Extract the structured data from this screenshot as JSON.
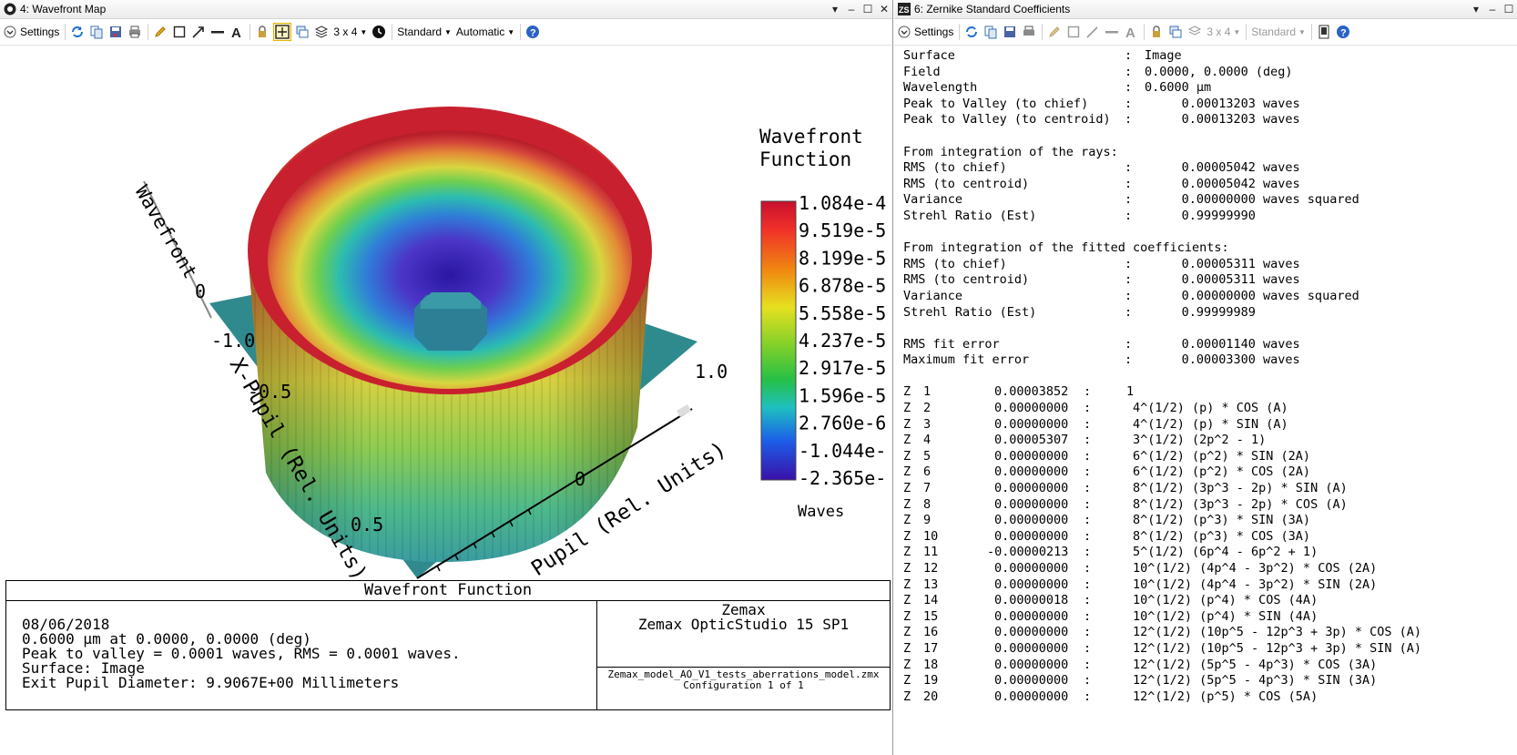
{
  "left_window": {
    "title": "4: Wavefront Map",
    "toolbar": {
      "settings": "Settings",
      "layout": "3 x 4",
      "standard": "Standard",
      "automatic": "Automatic"
    },
    "plot": {
      "legend_title_1": "Wavefront",
      "legend_title_2": "Function",
      "legend_ticks": [
        "1.084e-4",
        "9.519e-5",
        "8.199e-5",
        "6.878e-5",
        "5.558e-5",
        "4.237e-5",
        "2.917e-5",
        "1.596e-5",
        "2.760e-6",
        "-1.044e-",
        "-2.365e-"
      ],
      "units": "Waves",
      "z_axis_label": "Wavefront",
      "z_tick": "0",
      "x_axis_label": "X-Pupil (Rel. Units)",
      "y_axis_label": "Pupil (Rel. Units)",
      "x_ticks": [
        "-1.0",
        "-0.5",
        "0.5"
      ],
      "y_ticks": [
        "0",
        "1.0"
      ]
    },
    "info": {
      "title": "Wavefront Function",
      "lines": [
        "08/06/2018",
        "0.6000 µm at 0.0000, 0.0000 (deg)",
        "Peak to valley = 0.0001 waves, RMS = 0.0001 waves.",
        "Surface: Image",
        "Exit Pupil Diameter: 9.9067E+00 Millimeters"
      ],
      "company": "Zemax",
      "product": "Zemax OpticStudio 15 SP1",
      "file": "Zemax_model_AO_V1_tests_aberrations_model.zmx",
      "config": "Configuration 1 of 1"
    }
  },
  "right_window": {
    "title": "6: Zernike Standard Coefficients",
    "toolbar": {
      "settings": "Settings",
      "layout": "3 x 4",
      "standard": "Standard"
    },
    "summary": [
      {
        "label": "Surface",
        "value": "Image"
      },
      {
        "label": "Field",
        "value": "0.0000, 0.0000 (deg)"
      },
      {
        "label": "Wavelength",
        "value": "0.6000 µm"
      },
      {
        "label": "Peak to Valley (to chief)",
        "value": "     0.00013203 waves"
      },
      {
        "label": "Peak to Valley (to centroid)",
        "value": "     0.00013203 waves"
      }
    ],
    "rays_heading": "From integration of the rays:",
    "rays": [
      {
        "label": "RMS (to chief)",
        "value": "     0.00005042 waves"
      },
      {
        "label": "RMS (to centroid)",
        "value": "     0.00005042 waves"
      },
      {
        "label": "Variance",
        "value": "     0.00000000 waves squared"
      },
      {
        "label": "Strehl Ratio (Est)",
        "value": "     0.99999990"
      }
    ],
    "fit_heading": "From integration of the fitted coefficients:",
    "fit": [
      {
        "label": "RMS (to chief)",
        "value": "     0.00005311 waves"
      },
      {
        "label": "RMS (to centroid)",
        "value": "     0.00005311 waves"
      },
      {
        "label": "Variance",
        "value": "     0.00000000 waves squared"
      },
      {
        "label": "Strehl Ratio (Est)",
        "value": "     0.99999989"
      }
    ],
    "fit_error": [
      {
        "label": "RMS fit error",
        "value": "     0.00001140 waves"
      },
      {
        "label": "Maximum fit error",
        "value": "     0.00003300 waves"
      }
    ],
    "coefficients": [
      {
        "z": "Z",
        "n": "1",
        "value": "0.00003852",
        "term": "1"
      },
      {
        "z": "Z",
        "n": "2",
        "value": "0.00000000",
        "term": "4^(1/2) (p) * COS (A)"
      },
      {
        "z": "Z",
        "n": "3",
        "value": "0.00000000",
        "term": "4^(1/2) (p) * SIN (A)"
      },
      {
        "z": "Z",
        "n": "4",
        "value": "0.00005307",
        "term": "3^(1/2) (2p^2 - 1)"
      },
      {
        "z": "Z",
        "n": "5",
        "value": "0.00000000",
        "term": "6^(1/2) (p^2) * SIN (2A)"
      },
      {
        "z": "Z",
        "n": "6",
        "value": "0.00000000",
        "term": "6^(1/2) (p^2) * COS (2A)"
      },
      {
        "z": "Z",
        "n": "7",
        "value": "0.00000000",
        "term": "8^(1/2) (3p^3 - 2p) * SIN (A)"
      },
      {
        "z": "Z",
        "n": "8",
        "value": "0.00000000",
        "term": "8^(1/2) (3p^3 - 2p) * COS (A)"
      },
      {
        "z": "Z",
        "n": "9",
        "value": "0.00000000",
        "term": "8^(1/2) (p^3) * SIN (3A)"
      },
      {
        "z": "Z",
        "n": "10",
        "value": "0.00000000",
        "term": "8^(1/2) (p^3) * COS (3A)"
      },
      {
        "z": "Z",
        "n": "11",
        "value": "-0.00000213",
        "term": "5^(1/2) (6p^4 - 6p^2 + 1)"
      },
      {
        "z": "Z",
        "n": "12",
        "value": "0.00000000",
        "term": "10^(1/2) (4p^4 - 3p^2) * COS (2A)"
      },
      {
        "z": "Z",
        "n": "13",
        "value": "0.00000000",
        "term": "10^(1/2) (4p^4 - 3p^2) * SIN (2A)"
      },
      {
        "z": "Z",
        "n": "14",
        "value": "0.00000018",
        "term": "10^(1/2) (p^4) * COS (4A)"
      },
      {
        "z": "Z",
        "n": "15",
        "value": "0.00000000",
        "term": "10^(1/2) (p^4) * SIN (4A)"
      },
      {
        "z": "Z",
        "n": "16",
        "value": "0.00000000",
        "term": "12^(1/2) (10p^5 - 12p^3 + 3p) * COS (A)"
      },
      {
        "z": "Z",
        "n": "17",
        "value": "0.00000000",
        "term": "12^(1/2) (10p^5 - 12p^3 + 3p) * SIN (A)"
      },
      {
        "z": "Z",
        "n": "18",
        "value": "0.00000000",
        "term": "12^(1/2) (5p^5 - 4p^3) * COS (3A)"
      },
      {
        "z": "Z",
        "n": "19",
        "value": "0.00000000",
        "term": "12^(1/2) (5p^5 - 4p^3) * SIN (3A)"
      },
      {
        "z": "Z",
        "n": "20",
        "value": "0.00000000",
        "term": "12^(1/2) (p^5) * COS (5A)"
      }
    ]
  }
}
